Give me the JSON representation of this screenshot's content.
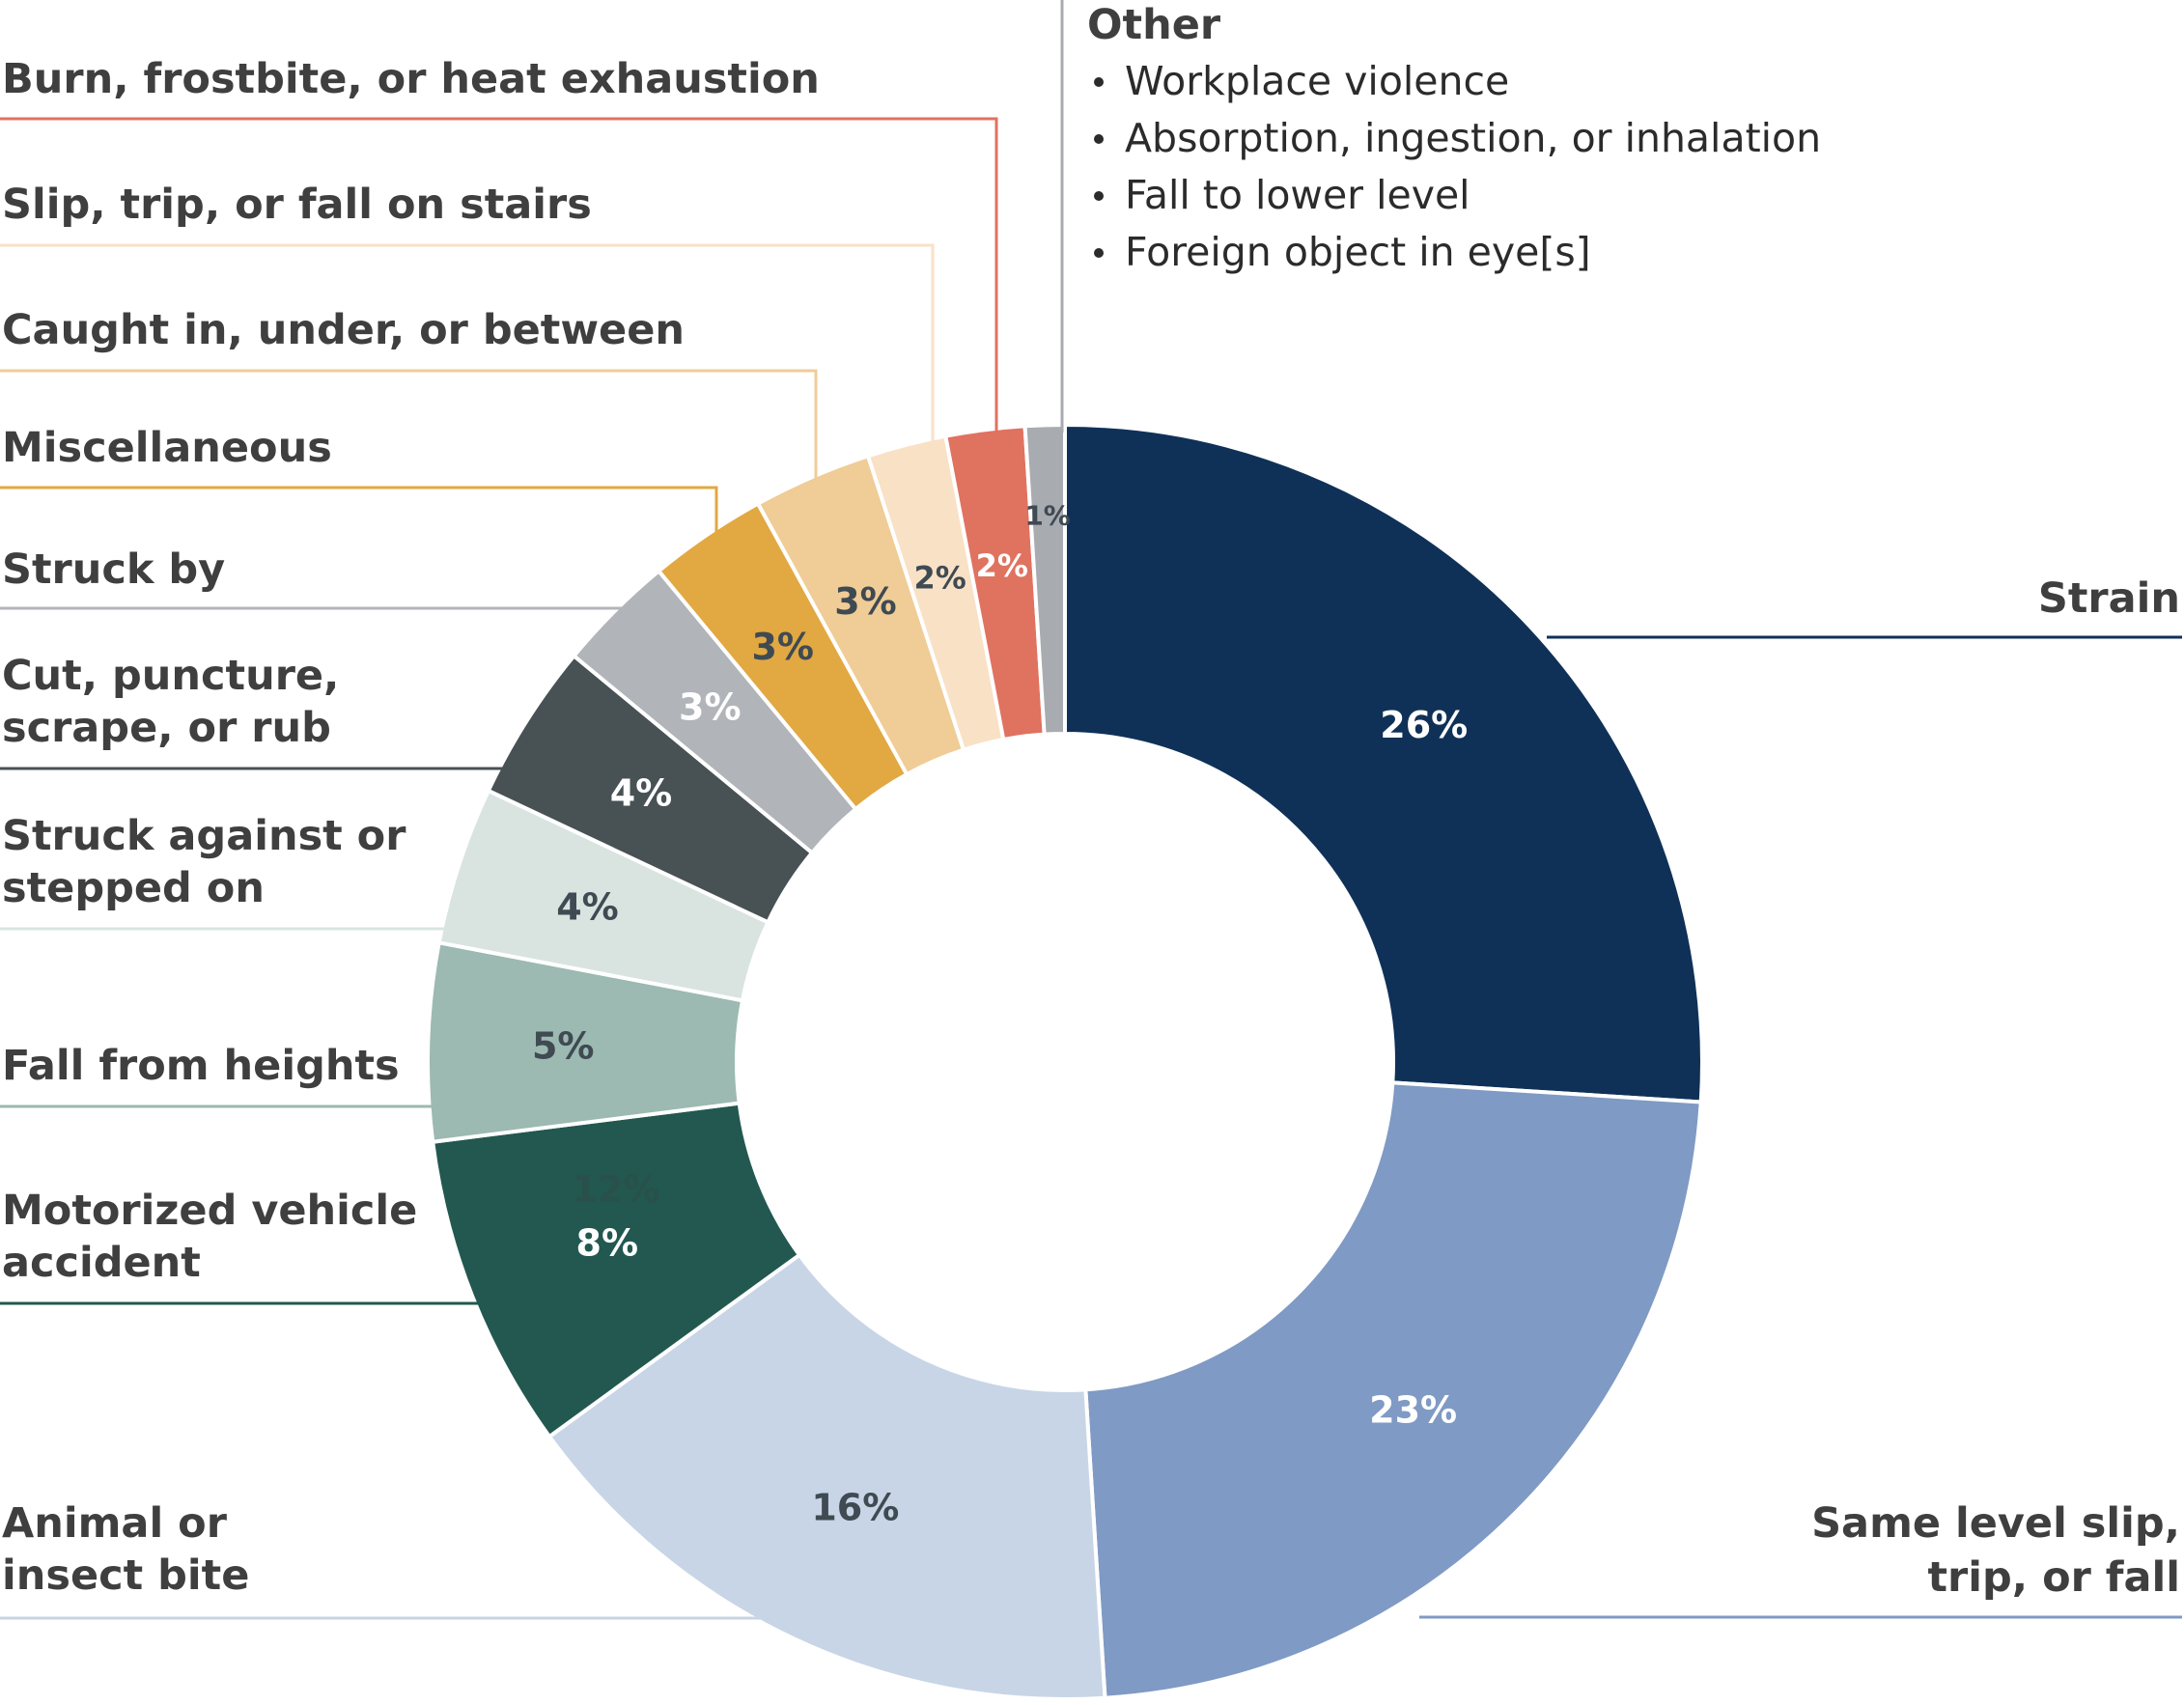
{
  "chart_data": {
    "type": "donut",
    "title": "",
    "slices": [
      {
        "label": "Strain",
        "value": 26,
        "display": "26%",
        "color": "#0f3157",
        "label_color": "#ffffff"
      },
      {
        "label": "Same level slip, trip, or fall",
        "value": 23,
        "display": "23%",
        "color": "#7f9ac4",
        "label_color": "#ffffff"
      },
      {
        "label": "Animal or insect bite",
        "value": 16,
        "display": "16%",
        "color": "#c8d5e6",
        "label_color": "#3f4a52"
      },
      {
        "label": "Motorized vehicle accident",
        "value": 8,
        "display": "8%",
        "color": "#225850",
        "label_color": "#ffffff"
      },
      {
        "label": "Fall from heights",
        "value": 5,
        "display": "5%",
        "color": "#9cb9b2",
        "label_color": "#3f4a52"
      },
      {
        "label": "Struck against or stepped on",
        "value": 4,
        "display": "4%",
        "color": "#d9e4e1",
        "label_color": "#3f4a52"
      },
      {
        "label": "Cut, puncture, scrape, or rub",
        "value": 4,
        "display": "4%",
        "color": "#485154",
        "label_color": "#ffffff"
      },
      {
        "label": "Struck by",
        "value": 3,
        "display": "3%",
        "color": "#b1b4b8",
        "label_color": "#ffffff"
      },
      {
        "label": "Miscellaneous",
        "value": 3,
        "display": "3%",
        "color": "#e2a842",
        "label_color": "#3f4a52"
      },
      {
        "label": "Caught in, under, or between",
        "value": 3,
        "display": "3%",
        "color": "#f0cc96",
        "label_color": "#3f4a52"
      },
      {
        "label": "Slip, trip, or fall on stairs",
        "value": 2,
        "display": "2%",
        "color": "#f9e1c6",
        "label_color": "#3f4a52"
      },
      {
        "label": "Burn, frostbite, or heat exhaustion",
        "value": 2,
        "display": "2%",
        "color": "#e07260",
        "label_color": "#ffffff"
      },
      {
        "label": "Other",
        "value": 1,
        "display": "1%",
        "color": "#a8abb0",
        "label_color": "#3f4a52"
      }
    ],
    "stray_label": "12%",
    "legend_placement": "callouts"
  },
  "labels": {
    "strain": "Strain",
    "same_level_1": "Same level slip,",
    "same_level_2": "trip, or fall",
    "animal_1": "Animal or",
    "animal_2": "insect bite",
    "motor_1": "Motorized vehicle",
    "motor_2": "accident",
    "fall_heights": "Fall from heights",
    "struck_against_1": "Struck against or",
    "struck_against_2": "stepped on",
    "cut_1": "Cut, puncture,",
    "cut_2": "scrape, or rub",
    "struck_by": "Struck by",
    "misc": "Miscellaneous",
    "caught": "Caught in, under, or between",
    "stairs": "Slip, trip, or fall on stairs",
    "burn": "Burn, frostbite, or heat exhaustion"
  },
  "other_box": {
    "title": "Other",
    "items": [
      "Workplace violence",
      "Absorption, ingestion, or inhalation",
      "Fall to lower level",
      "Foreign object in eye[s]"
    ]
  }
}
